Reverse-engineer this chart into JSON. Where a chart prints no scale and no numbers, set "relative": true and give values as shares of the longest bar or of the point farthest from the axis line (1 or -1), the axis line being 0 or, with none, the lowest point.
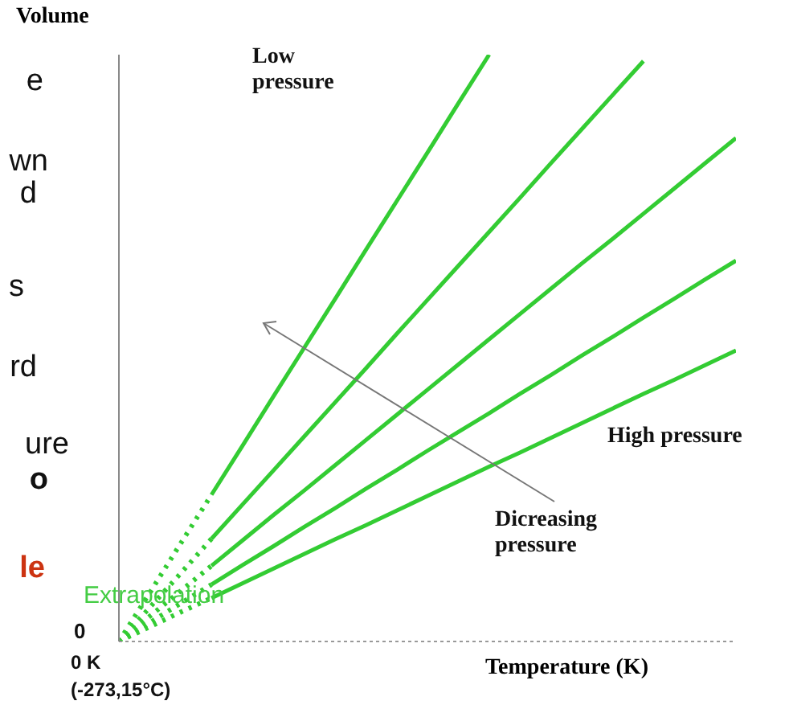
{
  "chart_data": {
    "type": "line",
    "relative": true,
    "xlabel": "Temperature (K)",
    "ylabel": "Volume",
    "categories": [
      null,
      null,
      null,
      null,
      null,
      null,
      null,
      null,
      null,
      null,
      null,
      null,
      null,
      null,
      null,
      null,
      null,
      null,
      null,
      null,
      null
    ],
    "legend": false,
    "marker": "none",
    "series": [
      {
        "color": "#33cc33",
        "line_style": "dotted",
        "values": [
          0,
          0.083,
          0.167,
          0.25,
          null,
          null,
          null,
          null,
          null,
          null,
          null,
          null,
          null,
          null,
          null,
          null,
          null,
          null,
          null,
          null,
          null
        ]
      },
      {
        "color": "#33cc33",
        "line_style": "solid",
        "values": [
          null,
          null,
          null,
          0.25,
          0.333,
          0.417,
          0.5,
          0.583,
          0.667,
          0.75,
          0.833,
          0.917,
          1,
          null,
          null,
          null,
          null,
          null,
          null,
          null,
          null
        ]
      },
      {
        "color": "#33cc33",
        "line_style": "dotted",
        "values": [
          0,
          0.058,
          0.116,
          0.175,
          null,
          null,
          null,
          null,
          null,
          null,
          null,
          null,
          null,
          null,
          null,
          null,
          null,
          null,
          null,
          null,
          null
        ]
      },
      {
        "color": "#33cc33",
        "line_style": "solid",
        "values": [
          null,
          null,
          null,
          0.175,
          0.233,
          0.291,
          0.349,
          0.407,
          0.465,
          0.524,
          0.582,
          0.64,
          0.698,
          0.756,
          0.815,
          0.873,
          0.931,
          0.989,
          null,
          null,
          null
        ]
      },
      {
        "color": "#33cc33",
        "line_style": "dotted",
        "values": [
          0,
          0.043,
          0.086,
          0.129,
          null,
          null,
          null,
          null,
          null,
          null,
          null,
          null,
          null,
          null,
          null,
          null,
          null,
          null,
          null,
          null,
          null
        ]
      },
      {
        "color": "#33cc33",
        "line_style": "solid",
        "values": [
          null,
          null,
          null,
          0.129,
          0.172,
          0.215,
          0.257,
          0.3,
          0.343,
          0.386,
          0.429,
          0.472,
          0.515,
          0.558,
          0.601,
          0.644,
          0.686,
          0.729,
          0.772,
          0.815,
          0.858
        ]
      },
      {
        "color": "#33cc33",
        "line_style": "dotted",
        "values": [
          0,
          0.032,
          0.065,
          0.097,
          null,
          null,
          null,
          null,
          null,
          null,
          null,
          null,
          null,
          null,
          null,
          null,
          null,
          null,
          null,
          null,
          null
        ]
      },
      {
        "color": "#33cc33",
        "line_style": "solid",
        "values": [
          null,
          null,
          null,
          0.097,
          0.13,
          0.162,
          0.195,
          0.227,
          0.26,
          0.292,
          0.325,
          0.357,
          0.389,
          0.422,
          0.454,
          0.487,
          0.519,
          0.552,
          0.584,
          0.617,
          0.649
        ]
      },
      {
        "color": "#33cc33",
        "line_style": "dotted",
        "values": [
          0,
          0.025,
          0.05,
          0.074,
          null,
          null,
          null,
          null,
          null,
          null,
          null,
          null,
          null,
          null,
          null,
          null,
          null,
          null,
          null,
          null,
          null
        ]
      },
      {
        "color": "#33cc33",
        "line_style": "solid",
        "values": [
          null,
          null,
          null,
          0.074,
          0.099,
          0.124,
          0.149,
          0.174,
          0.198,
          0.223,
          0.248,
          0.273,
          0.298,
          0.322,
          0.347,
          0.372,
          0.397,
          0.422,
          0.446,
          0.471,
          0.496
        ]
      }
    ],
    "annotations": [
      "Low pressure",
      "High pressure",
      "Dicreasing pressure",
      "Extrapolation",
      "0",
      "0 K",
      "(-273,15°C)",
      "e",
      "wn",
      "d",
      "s",
      "rd",
      "ure",
      "o",
      "le"
    ]
  }
}
